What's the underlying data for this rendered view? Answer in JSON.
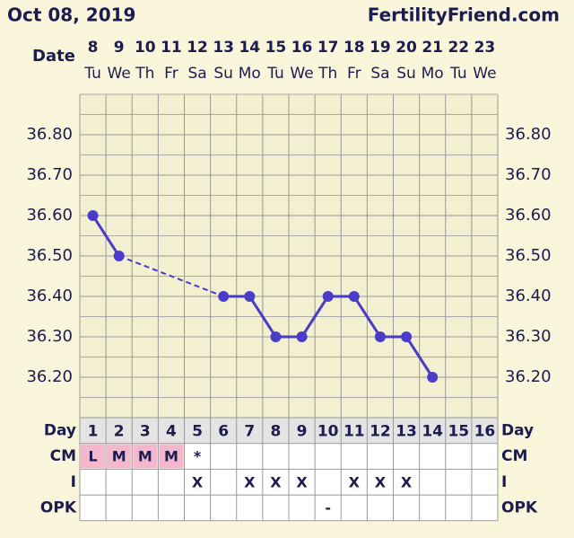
{
  "chart_data": {
    "type": "line",
    "title": "Oct 08, 2019",
    "site": "FertilityFriend.com",
    "date_label": "Date",
    "dates": [
      8,
      9,
      10,
      11,
      12,
      13,
      14,
      15,
      16,
      17,
      18,
      19,
      20,
      21,
      22,
      23
    ],
    "weekdays": [
      "Tu",
      "We",
      "Th",
      "Fr",
      "Sa",
      "Su",
      "Mo",
      "Tu",
      "We",
      "Th",
      "Fr",
      "Sa",
      "Su",
      "Mo",
      "Tu",
      "We"
    ],
    "day_label": "Day",
    "days": [
      1,
      2,
      3,
      4,
      5,
      6,
      7,
      8,
      9,
      10,
      11,
      12,
      13,
      14,
      15,
      16
    ],
    "series": [
      {
        "color": "#4a3bc8",
        "values": [
          36.6,
          36.5,
          null,
          null,
          null,
          36.4,
          36.4,
          36.3,
          36.3,
          36.4,
          36.4,
          36.3,
          36.3,
          36.2,
          null,
          null
        ]
      }
    ],
    "ylim": [
      36.1,
      36.9
    ],
    "yticks": [
      {
        "value": 36.2,
        "label": "36.20"
      },
      {
        "value": 36.3,
        "label": "36.30"
      },
      {
        "value": 36.4,
        "label": "36.40"
      },
      {
        "value": 36.5,
        "label": "36.50"
      },
      {
        "value": 36.6,
        "label": "36.60"
      },
      {
        "value": 36.7,
        "label": "36.70"
      },
      {
        "value": 36.8,
        "label": "36.80"
      }
    ],
    "grid": true,
    "rows": [
      {
        "label": "CM",
        "cells": [
          "L",
          "M",
          "M",
          "M",
          "*",
          null,
          null,
          null,
          null,
          null,
          null,
          null,
          null,
          null,
          null,
          null
        ],
        "colors": [
          "#f4b8cc",
          "#f4b8cc",
          "#f4b8cc",
          "#f4b8cc",
          null,
          null,
          null,
          null,
          null,
          null,
          null,
          null,
          null,
          null,
          null,
          null
        ]
      },
      {
        "label": "I",
        "cells": [
          null,
          null,
          null,
          null,
          "X",
          null,
          "X",
          "X",
          "X",
          null,
          "X",
          "X",
          "X",
          null,
          null,
          null
        ]
      },
      {
        "label": "OPK",
        "cells": [
          null,
          null,
          null,
          null,
          null,
          null,
          null,
          null,
          null,
          "-",
          null,
          null,
          null,
          null,
          null,
          null
        ]
      }
    ]
  }
}
